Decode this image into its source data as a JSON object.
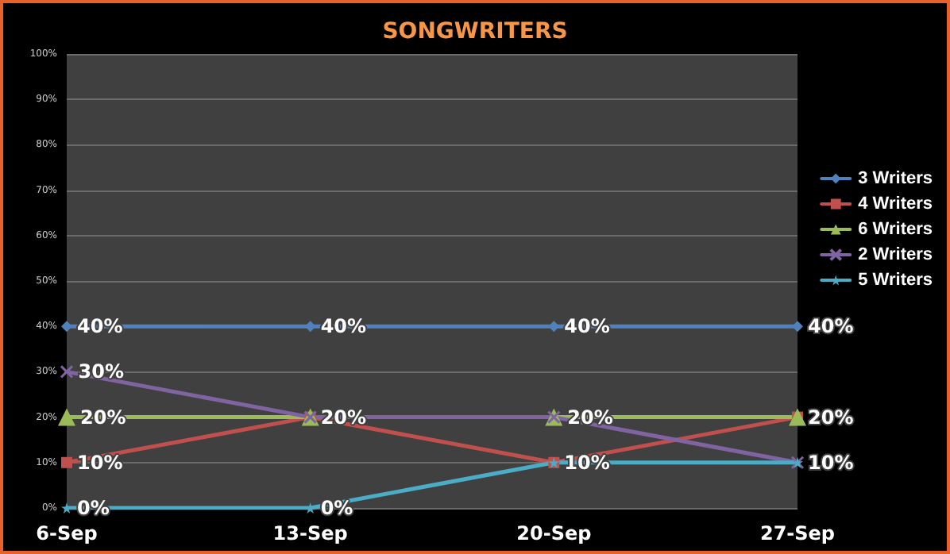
{
  "chart_data": {
    "type": "line",
    "title": "SONGWRITERS",
    "categories": [
      "6-Sep",
      "13-Sep",
      "20-Sep",
      "27-Sep"
    ],
    "series": [
      {
        "name": "3 Writers",
        "color": "#4f81bd",
        "marker": "diamond",
        "values": [
          40,
          40,
          40,
          40
        ],
        "value_labels": [
          "40%",
          "40%",
          "40%",
          "40%"
        ]
      },
      {
        "name": "4 Writers",
        "color": "#c0504d",
        "marker": "square",
        "values": [
          10,
          20,
          10,
          20
        ],
        "value_labels": [
          "10%",
          "20%",
          "10%",
          "20%"
        ]
      },
      {
        "name": "6 Writers",
        "color": "#9bbb59",
        "marker": "triangle",
        "values": [
          20,
          20,
          20,
          20
        ],
        "value_labels": [
          "20%",
          null,
          "20%",
          null
        ]
      },
      {
        "name": "2 Writers",
        "color": "#8064a2",
        "marker": "cross",
        "values": [
          30,
          20,
          20,
          10
        ],
        "value_labels": [
          "30%",
          null,
          null,
          null
        ]
      },
      {
        "name": "5 Writers",
        "color": "#4bacc6",
        "marker": "star",
        "values": [
          0,
          0,
          10,
          10
        ],
        "value_labels": [
          "0%",
          "0%",
          null,
          "10%"
        ]
      }
    ],
    "ylim": [
      0,
      100
    ],
    "yticks": [
      {
        "value": 0,
        "label": "0%"
      },
      {
        "value": 10,
        "label": "10%"
      },
      {
        "value": 20,
        "label": "20%"
      },
      {
        "value": 30,
        "label": "30%"
      },
      {
        "value": 40,
        "label": "40%"
      },
      {
        "value": 50,
        "label": "50%"
      },
      {
        "value": 60,
        "label": "60%"
      },
      {
        "value": 70,
        "label": "70%"
      },
      {
        "value": 80,
        "label": "80%"
      },
      {
        "value": 90,
        "label": "90%"
      },
      {
        "value": 100,
        "label": "100%"
      }
    ],
    "grid": "y",
    "legend": "right"
  }
}
